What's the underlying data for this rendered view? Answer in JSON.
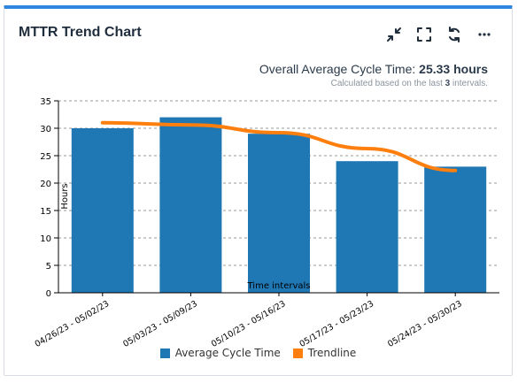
{
  "card": {
    "title": "MTTR Trend Chart"
  },
  "toolbar": {
    "icons": [
      "collapse-icon",
      "fullscreen-icon",
      "refresh-icon",
      "more-icon"
    ]
  },
  "summary": {
    "label": "Overall Average Cycle Time:",
    "value": "25.33 hours",
    "note_prefix": "Calculated based on the last",
    "note_count": "3",
    "note_suffix": "intervals."
  },
  "colors": {
    "bar": "#1f77b4",
    "trendline": "#ff7f0e",
    "accent": "#2e86de"
  },
  "chart_data": {
    "type": "bar",
    "xlabel": "Time intervals",
    "ylabel": "Hours",
    "ylim": [
      0,
      35
    ],
    "yticks": [
      0,
      5,
      10,
      15,
      20,
      25,
      30,
      35
    ],
    "grid": "horizontal dashed",
    "legend_position": "bottom",
    "categories": [
      "04/26/23 - 05/02/23",
      "05/03/23 - 05/09/23",
      "05/10/23 - 05/16/23",
      "05/17/23 - 05/23/23",
      "05/24/23 - 05/30/23"
    ],
    "series": [
      {
        "name": "Average Cycle Time",
        "type": "bar",
        "values": [
          30,
          32,
          29,
          24,
          23
        ]
      },
      {
        "name": "Trendline",
        "type": "line",
        "values": [
          31,
          30.6,
          29.2,
          26.3,
          22.3
        ]
      }
    ]
  }
}
